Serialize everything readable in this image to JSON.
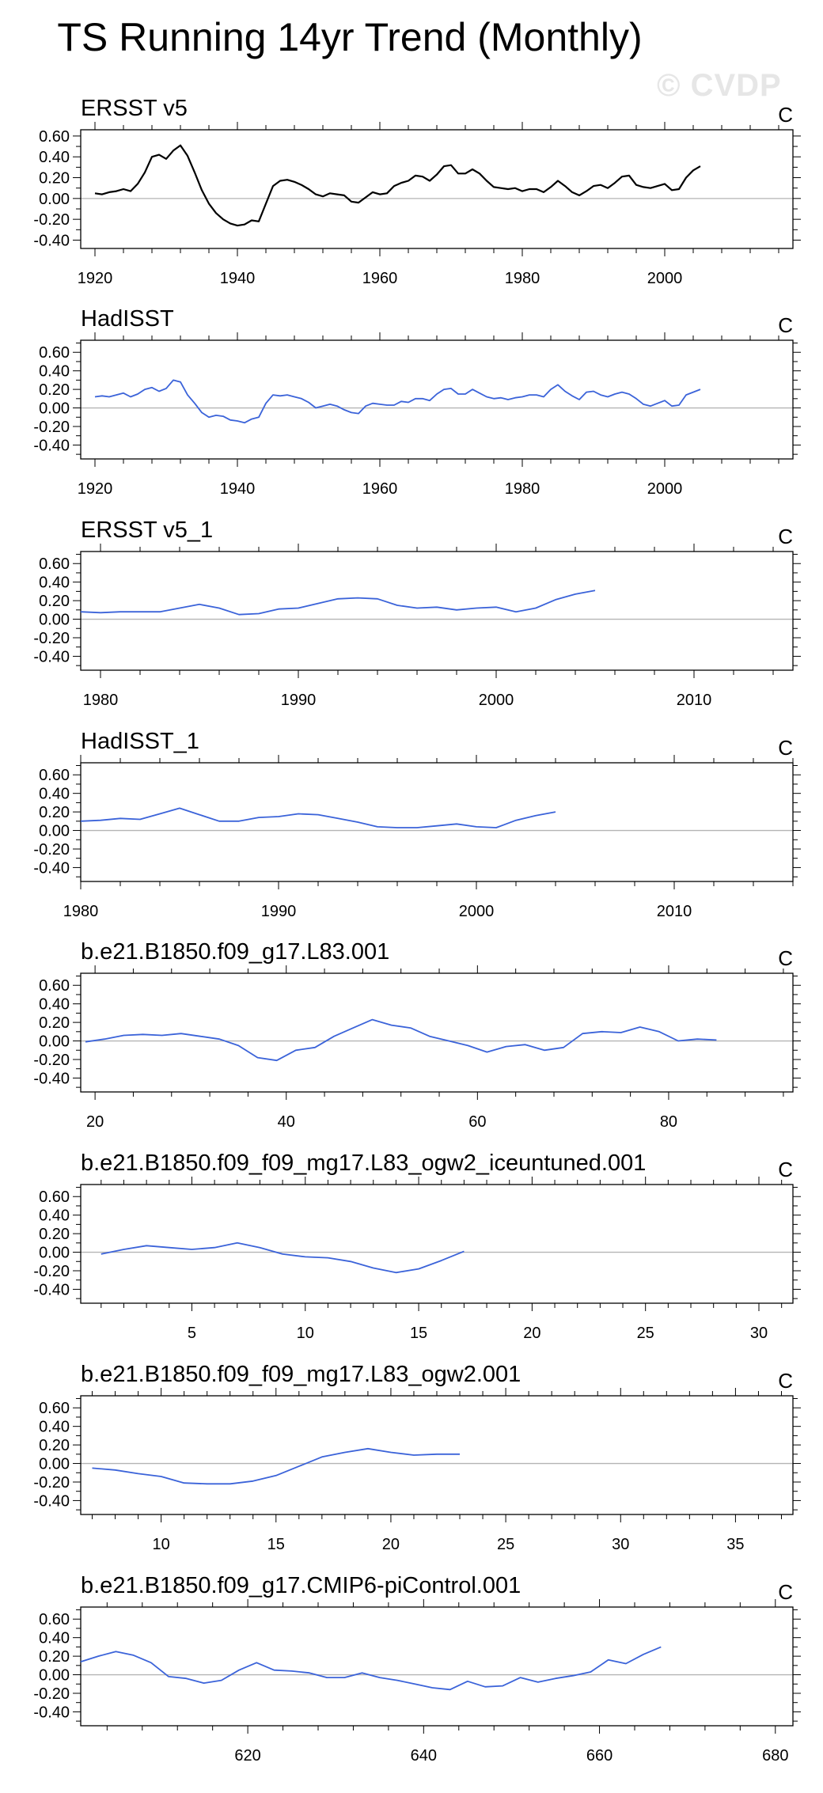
{
  "figure_title": "TS Running 14yr Trend (Monthly)",
  "watermark": "© CVDP",
  "colors": {
    "observation_line": "#000000",
    "model_line": "#3b63d9",
    "zero_line": "#b4b4b4",
    "axis": "#000000"
  },
  "chart_data": [
    {
      "type": "line",
      "title": "ERSST v5",
      "units": "C",
      "color": "#000000",
      "xlim": [
        1918,
        2018
      ],
      "xticks": [
        1920,
        1940,
        1960,
        1980,
        2000
      ],
      "ylim": [
        -0.48,
        0.66
      ],
      "yticks": [
        -0.4,
        -0.2,
        0.0,
        0.2,
        0.4,
        0.6
      ],
      "series": [
        {
          "x": [
            1920,
            1921,
            1922,
            1923,
            1924,
            1925,
            1926,
            1927,
            1928,
            1929,
            1930,
            1931,
            1932,
            1933,
            1934,
            1935,
            1936,
            1937,
            1938,
            1939,
            1940,
            1941,
            1942,
            1943,
            1944,
            1945,
            1946,
            1947,
            1948,
            1949,
            1950,
            1951,
            1952,
            1953,
            1954,
            1955,
            1956,
            1957,
            1958,
            1959,
            1960,
            1961,
            1962,
            1963,
            1964,
            1965,
            1966,
            1967,
            1968,
            1969,
            1970,
            1971,
            1972,
            1973,
            1974,
            1975,
            1976,
            1977,
            1978,
            1979,
            1980,
            1981,
            1982,
            1983,
            1984,
            1985,
            1986,
            1987,
            1988,
            1989,
            1990,
            1991,
            1992,
            1993,
            1994,
            1995,
            1996,
            1997,
            1998,
            1999,
            2000,
            2001,
            2002,
            2003,
            2004,
            2005
          ],
          "values": [
            0.05,
            0.04,
            0.06,
            0.07,
            0.09,
            0.07,
            0.14,
            0.25,
            0.4,
            0.42,
            0.38,
            0.46,
            0.51,
            0.41,
            0.25,
            0.08,
            -0.05,
            -0.14,
            -0.2,
            -0.24,
            -0.26,
            -0.25,
            -0.21,
            -0.22,
            -0.05,
            0.12,
            0.17,
            0.18,
            0.16,
            0.13,
            0.09,
            0.04,
            0.02,
            0.05,
            0.04,
            0.03,
            -0.03,
            -0.04,
            0.01,
            0.06,
            0.04,
            0.05,
            0.12,
            0.15,
            0.17,
            0.22,
            0.21,
            0.17,
            0.23,
            0.31,
            0.32,
            0.24,
            0.24,
            0.28,
            0.24,
            0.17,
            0.11,
            0.1,
            0.09,
            0.1,
            0.07,
            0.09,
            0.09,
            0.06,
            0.11,
            0.17,
            0.12,
            0.06,
            0.03,
            0.07,
            0.12,
            0.13,
            0.1,
            0.15,
            0.21,
            0.22,
            0.13,
            0.11,
            0.1,
            0.12,
            0.14,
            0.08,
            0.09,
            0.2,
            0.27,
            0.31
          ]
        }
      ]
    },
    {
      "type": "line",
      "title": "HadISST",
      "units": "C",
      "color": "#3b63d9",
      "xlim": [
        1918,
        2018
      ],
      "xticks": [
        1920,
        1940,
        1960,
        1980,
        2000
      ],
      "ylim": [
        -0.55,
        0.73
      ],
      "yticks": [
        -0.4,
        -0.2,
        0.0,
        0.2,
        0.4,
        0.6
      ],
      "series": [
        {
          "x": [
            1920,
            1921,
            1922,
            1923,
            1924,
            1925,
            1926,
            1927,
            1928,
            1929,
            1930,
            1931,
            1932,
            1933,
            1934,
            1935,
            1936,
            1937,
            1938,
            1939,
            1940,
            1941,
            1942,
            1943,
            1944,
            1945,
            1946,
            1947,
            1948,
            1949,
            1950,
            1951,
            1952,
            1953,
            1954,
            1955,
            1956,
            1957,
            1958,
            1959,
            1960,
            1961,
            1962,
            1963,
            1964,
            1965,
            1966,
            1967,
            1968,
            1969,
            1970,
            1971,
            1972,
            1973,
            1974,
            1975,
            1976,
            1977,
            1978,
            1979,
            1980,
            1981,
            1982,
            1983,
            1984,
            1985,
            1986,
            1987,
            1988,
            1989,
            1990,
            1991,
            1992,
            1993,
            1994,
            1995,
            1996,
            1997,
            1998,
            1999,
            2000,
            2001,
            2002,
            2003,
            2004,
            2005
          ],
          "values": [
            0.12,
            0.13,
            0.12,
            0.14,
            0.16,
            0.12,
            0.15,
            0.2,
            0.22,
            0.18,
            0.21,
            0.3,
            0.28,
            0.14,
            0.05,
            -0.05,
            -0.1,
            -0.08,
            -0.09,
            -0.13,
            -0.14,
            -0.16,
            -0.12,
            -0.1,
            0.05,
            0.14,
            0.13,
            0.14,
            0.12,
            0.1,
            0.06,
            0.0,
            0.02,
            0.04,
            0.02,
            -0.02,
            -0.05,
            -0.06,
            0.02,
            0.05,
            0.04,
            0.03,
            0.03,
            0.07,
            0.06,
            0.1,
            0.1,
            0.08,
            0.15,
            0.2,
            0.21,
            0.15,
            0.15,
            0.2,
            0.16,
            0.12,
            0.1,
            0.11,
            0.09,
            0.11,
            0.12,
            0.14,
            0.14,
            0.12,
            0.2,
            0.25,
            0.18,
            0.13,
            0.09,
            0.17,
            0.18,
            0.14,
            0.12,
            0.15,
            0.17,
            0.15,
            0.1,
            0.04,
            0.02,
            0.05,
            0.08,
            0.02,
            0.03,
            0.14,
            0.17,
            0.2
          ]
        }
      ]
    },
    {
      "type": "line",
      "title": "ERSST v5_1",
      "units": "C",
      "color": "#3b63d9",
      "xlim": [
        1979,
        2015
      ],
      "xticks": [
        1980,
        1990,
        2000,
        2010
      ],
      "ylim": [
        -0.55,
        0.73
      ],
      "yticks": [
        -0.4,
        -0.2,
        0.0,
        0.2,
        0.4,
        0.6
      ],
      "series": [
        {
          "x": [
            1979,
            1980,
            1981,
            1982,
            1983,
            1984,
            1985,
            1986,
            1987,
            1988,
            1989,
            1990,
            1991,
            1992,
            1993,
            1994,
            1995,
            1996,
            1997,
            1998,
            1999,
            2000,
            2001,
            2002,
            2003,
            2004,
            2005
          ],
          "values": [
            0.08,
            0.07,
            0.08,
            0.08,
            0.08,
            0.12,
            0.16,
            0.12,
            0.05,
            0.06,
            0.11,
            0.12,
            0.17,
            0.22,
            0.23,
            0.22,
            0.15,
            0.12,
            0.13,
            0.1,
            0.12,
            0.13,
            0.08,
            0.12,
            0.21,
            0.27,
            0.31
          ]
        }
      ]
    },
    {
      "type": "line",
      "title": "HadISST_1",
      "units": "C",
      "color": "#3b63d9",
      "xlim": [
        1980,
        2016
      ],
      "xticks": [
        1980,
        1990,
        2000,
        2010
      ],
      "ylim": [
        -0.55,
        0.73
      ],
      "yticks": [
        -0.4,
        -0.2,
        0.0,
        0.2,
        0.4,
        0.6
      ],
      "series": [
        {
          "x": [
            1980,
            1981,
            1982,
            1983,
            1984,
            1985,
            1986,
            1987,
            1988,
            1989,
            1990,
            1991,
            1992,
            1993,
            1994,
            1995,
            1996,
            1997,
            1998,
            1999,
            2000,
            2001,
            2002,
            2003,
            2004
          ],
          "values": [
            0.1,
            0.11,
            0.13,
            0.12,
            0.18,
            0.24,
            0.17,
            0.1,
            0.1,
            0.14,
            0.15,
            0.18,
            0.17,
            0.13,
            0.09,
            0.04,
            0.03,
            0.03,
            0.05,
            0.07,
            0.04,
            0.03,
            0.11,
            0.16,
            0.2
          ]
        }
      ]
    },
    {
      "type": "line",
      "title": "b.e21.B1850.f09_g17.L83.001",
      "units": "C",
      "color": "#3b63d9",
      "xlim": [
        18.5,
        93
      ],
      "xticks": [
        20,
        40,
        60,
        80
      ],
      "ylim": [
        -0.55,
        0.73
      ],
      "yticks": [
        -0.4,
        -0.2,
        0.0,
        0.2,
        0.4,
        0.6
      ],
      "series": [
        {
          "x": [
            19,
            21,
            23,
            25,
            27,
            29,
            31,
            33,
            35,
            37,
            39,
            41,
            43,
            45,
            47,
            49,
            51,
            53,
            55,
            57,
            59,
            61,
            63,
            65,
            67,
            69,
            71,
            73,
            75,
            77,
            79,
            81,
            83,
            85
          ],
          "values": [
            -0.01,
            0.02,
            0.06,
            0.07,
            0.06,
            0.08,
            0.05,
            0.02,
            -0.05,
            -0.18,
            -0.21,
            -0.1,
            -0.07,
            0.05,
            0.14,
            0.23,
            0.17,
            0.14,
            0.05,
            0.0,
            -0.05,
            -0.12,
            -0.06,
            -0.04,
            -0.1,
            -0.07,
            0.08,
            0.1,
            0.09,
            0.15,
            0.1,
            0.0,
            0.02,
            0.01
          ]
        }
      ]
    },
    {
      "type": "line",
      "title": "b.e21.B1850.f09_f09_mg17.L83_ogw2_iceuntuned.001",
      "units": "C",
      "color": "#3b63d9",
      "xlim": [
        0.1,
        31.5
      ],
      "xticks": [
        5,
        10,
        15,
        20,
        25,
        30
      ],
      "ylim": [
        -0.55,
        0.73
      ],
      "yticks": [
        -0.4,
        -0.2,
        0.0,
        0.2,
        0.4,
        0.6
      ],
      "series": [
        {
          "x": [
            1,
            2,
            3,
            4,
            5,
            6,
            7,
            8,
            9,
            10,
            11,
            12,
            13,
            14,
            15,
            16,
            17
          ],
          "values": [
            -0.02,
            0.03,
            0.07,
            0.05,
            0.03,
            0.05,
            0.1,
            0.05,
            -0.02,
            -0.05,
            -0.06,
            -0.1,
            -0.17,
            -0.22,
            -0.18,
            -0.09,
            0.01
          ]
        }
      ]
    },
    {
      "type": "line",
      "title": "b.e21.B1850.f09_f09_mg17.L83_ogw2.001",
      "units": "C",
      "color": "#3b63d9",
      "xlim": [
        6.5,
        37.5
      ],
      "xticks": [
        10,
        15,
        20,
        25,
        30,
        35
      ],
      "ylim": [
        -0.55,
        0.73
      ],
      "yticks": [
        -0.4,
        -0.2,
        0.0,
        0.2,
        0.4,
        0.6
      ],
      "series": [
        {
          "x": [
            7,
            8,
            9,
            10,
            11,
            12,
            13,
            14,
            15,
            16,
            17,
            18,
            19,
            20,
            21,
            22,
            23
          ],
          "values": [
            -0.05,
            -0.07,
            -0.11,
            -0.14,
            -0.21,
            -0.22,
            -0.22,
            -0.19,
            -0.13,
            -0.03,
            0.07,
            0.12,
            0.16,
            0.12,
            0.09,
            0.1,
            0.1
          ]
        }
      ]
    },
    {
      "type": "line",
      "title": "b.e21.B1850.f09_g17.CMIP6-piControl.001",
      "units": "C",
      "color": "#3b63d9",
      "xlim": [
        601,
        682
      ],
      "xticks": [
        620,
        640,
        660,
        680
      ],
      "ylim": [
        -0.55,
        0.73
      ],
      "yticks": [
        -0.4,
        -0.2,
        0.0,
        0.2,
        0.4,
        0.6
      ],
      "series": [
        {
          "x": [
            601,
            603,
            605,
            607,
            609,
            611,
            613,
            615,
            617,
            619,
            621,
            623,
            625,
            627,
            629,
            631,
            633,
            635,
            637,
            639,
            641,
            643,
            645,
            647,
            649,
            651,
            653,
            655,
            657,
            659,
            661,
            663,
            665,
            667
          ],
          "values": [
            0.14,
            0.2,
            0.25,
            0.21,
            0.13,
            -0.02,
            -0.04,
            -0.09,
            -0.06,
            0.05,
            0.13,
            0.05,
            0.04,
            0.02,
            -0.03,
            -0.03,
            0.02,
            -0.03,
            -0.06,
            -0.1,
            -0.14,
            -0.16,
            -0.07,
            -0.13,
            -0.12,
            -0.03,
            -0.08,
            -0.04,
            -0.01,
            0.03,
            0.16,
            0.12,
            0.22,
            0.3
          ]
        }
      ]
    }
  ]
}
